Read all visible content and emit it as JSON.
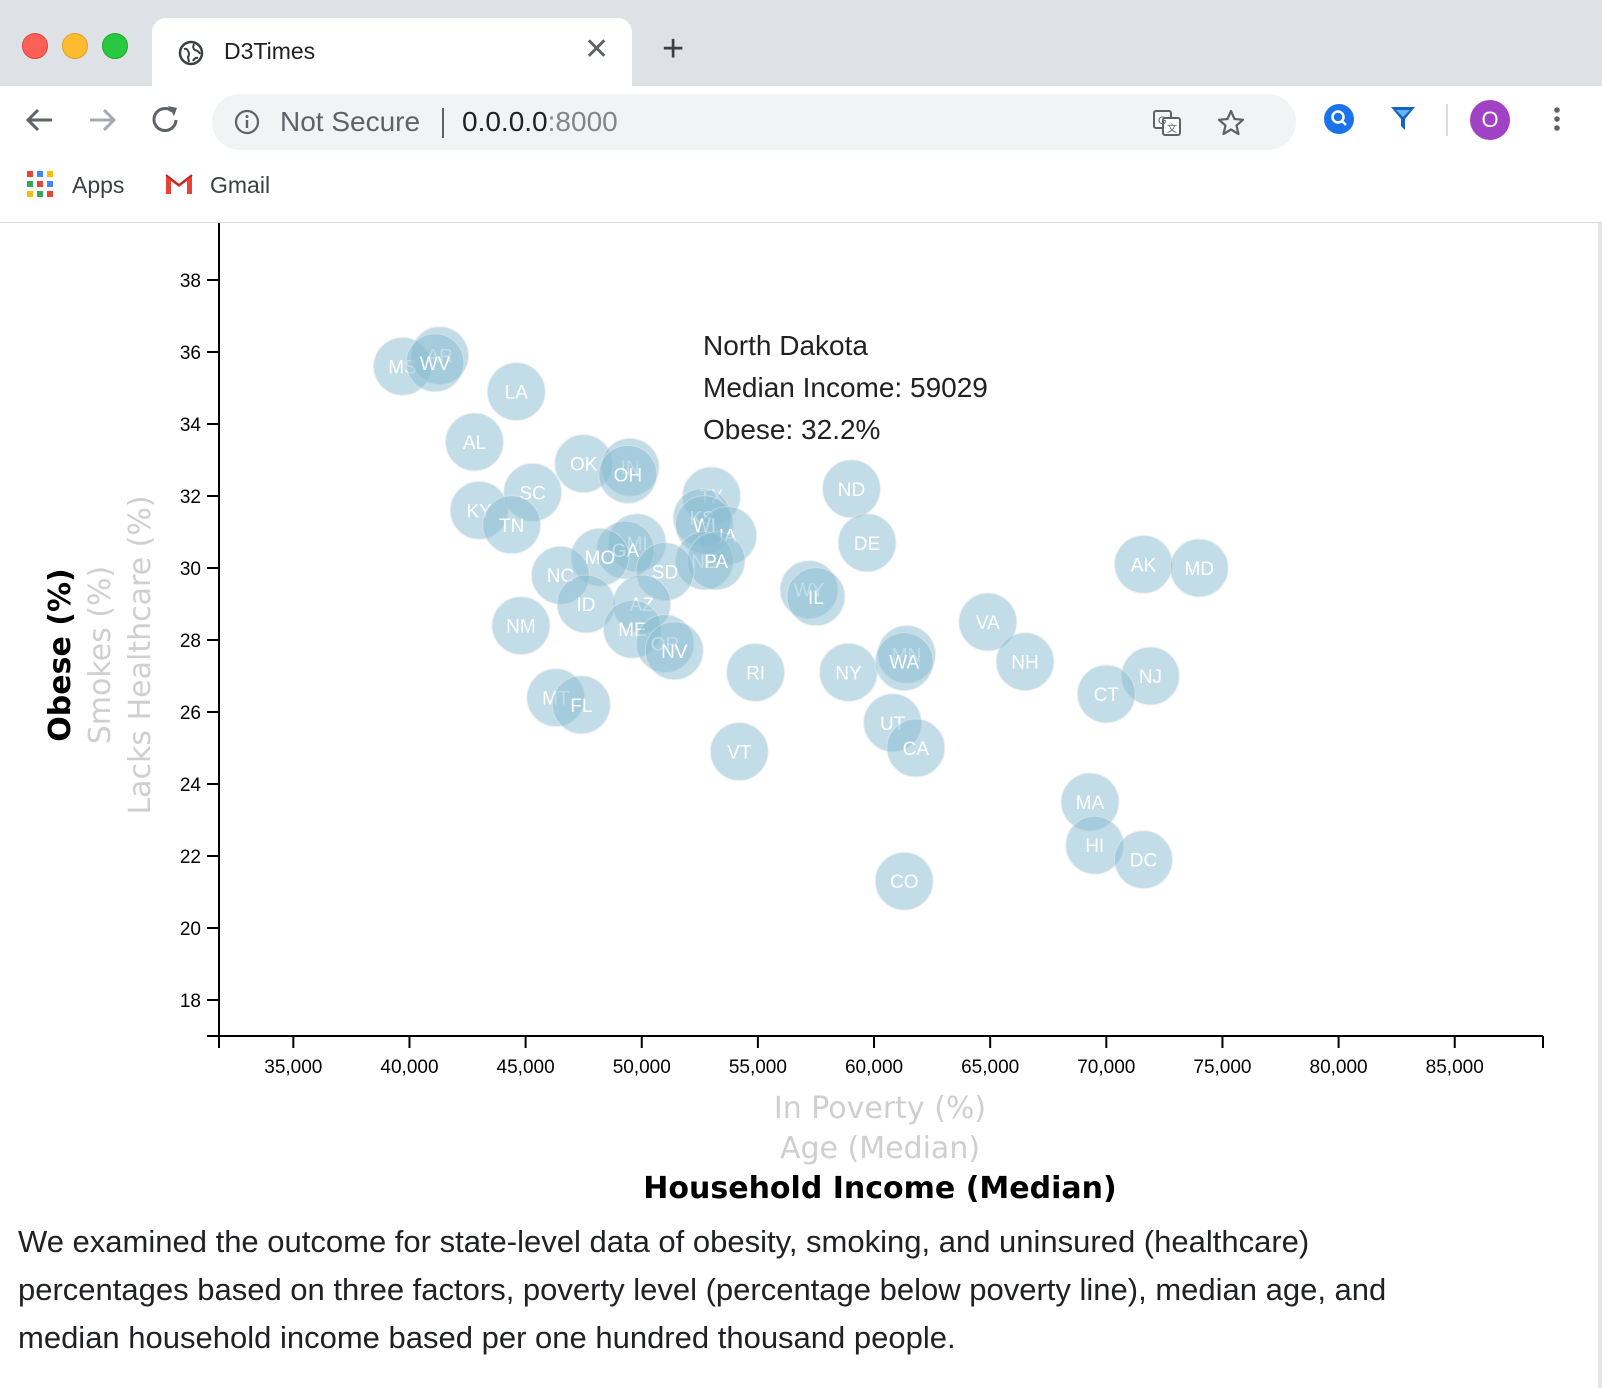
{
  "browser": {
    "tab_title": "D3Times",
    "security_label": "Not Secure",
    "url_host": "0.0.0.0",
    "url_port": ":8000",
    "profile_initial": "O",
    "bookmarks": [
      {
        "label": "Apps",
        "icon": "apps-grid-icon"
      },
      {
        "label": "Gmail",
        "icon": "gmail-icon"
      }
    ]
  },
  "tooltip": {
    "state": "North Dakota",
    "income_line": "Median Income: 59029",
    "obese_line": "Obese: 32.2%"
  },
  "chart_data": {
    "type": "scatter",
    "xlabel_options": [
      {
        "label": "In Poverty (%)",
        "active": false
      },
      {
        "label": "Age (Median)",
        "active": false
      },
      {
        "label": "Household Income (Median)",
        "active": true
      }
    ],
    "ylabel_options": [
      {
        "label": "Obese (%)",
        "active": true
      },
      {
        "label": "Smokes (%)",
        "active": false
      },
      {
        "label": "Lacks Healthcare (%)",
        "active": false
      }
    ],
    "x_ticks": [
      35000,
      40000,
      45000,
      50000,
      55000,
      60000,
      65000,
      70000,
      75000,
      80000,
      85000
    ],
    "x_tick_labels": [
      "35,000",
      "40,000",
      "45,000",
      "50,000",
      "55,000",
      "60,000",
      "65,000",
      "70,000",
      "75,000",
      "80,000",
      "85,000"
    ],
    "y_ticks": [
      18,
      20,
      22,
      24,
      26,
      28,
      30,
      32,
      34,
      36,
      38
    ],
    "xlim": [
      31800,
      88800
    ],
    "ylim": [
      17,
      40
    ],
    "marker_color": "#89bdd3",
    "points": [
      {
        "abbr": "MS",
        "x": 39700,
        "y": 35.6
      },
      {
        "abbr": "AR",
        "x": 41300,
        "y": 35.9
      },
      {
        "abbr": "WV",
        "x": 41100,
        "y": 35.7
      },
      {
        "abbr": "LA",
        "x": 44600,
        "y": 34.9
      },
      {
        "abbr": "AL",
        "x": 42800,
        "y": 33.5
      },
      {
        "abbr": "KY",
        "x": 43000,
        "y": 31.6
      },
      {
        "abbr": "SC",
        "x": 45300,
        "y": 32.1
      },
      {
        "abbr": "TN",
        "x": 44400,
        "y": 31.2
      },
      {
        "abbr": "OK",
        "x": 47500,
        "y": 32.9
      },
      {
        "abbr": "IN",
        "x": 49500,
        "y": 32.8
      },
      {
        "abbr": "OH",
        "x": 49400,
        "y": 32.6
      },
      {
        "abbr": "TX",
        "x": 53000,
        "y": 32.0
      },
      {
        "abbr": "KS",
        "x": 52600,
        "y": 31.4
      },
      {
        "abbr": "WI",
        "x": 52700,
        "y": 31.2
      },
      {
        "abbr": "IA",
        "x": 53700,
        "y": 30.9
      },
      {
        "abbr": "NE",
        "x": 52700,
        "y": 30.2
      },
      {
        "abbr": "PA",
        "x": 53200,
        "y": 30.2
      },
      {
        "abbr": "MI",
        "x": 49800,
        "y": 30.7
      },
      {
        "abbr": "GA",
        "x": 49300,
        "y": 30.5
      },
      {
        "abbr": "MO",
        "x": 48200,
        "y": 30.3
      },
      {
        "abbr": "SD",
        "x": 51000,
        "y": 29.9
      },
      {
        "abbr": "NC",
        "x": 46500,
        "y": 29.8
      },
      {
        "abbr": "ID",
        "x": 47600,
        "y": 29.0
      },
      {
        "abbr": "AZ",
        "x": 50000,
        "y": 29.0
      },
      {
        "abbr": "ME",
        "x": 49600,
        "y": 28.3
      },
      {
        "abbr": "OR",
        "x": 51000,
        "y": 27.9
      },
      {
        "abbr": "NV",
        "x": 51400,
        "y": 27.7
      },
      {
        "abbr": "NM",
        "x": 44800,
        "y": 28.4
      },
      {
        "abbr": "MT",
        "x": 46300,
        "y": 26.4
      },
      {
        "abbr": "FL",
        "x": 47400,
        "y": 26.2
      },
      {
        "abbr": "WY",
        "x": 57200,
        "y": 29.4
      },
      {
        "abbr": "IL",
        "x": 57500,
        "y": 29.2
      },
      {
        "abbr": "ND",
        "x": 59029,
        "y": 32.2
      },
      {
        "abbr": "DE",
        "x": 59700,
        "y": 30.7
      },
      {
        "abbr": "RI",
        "x": 54900,
        "y": 27.1
      },
      {
        "abbr": "VT",
        "x": 54200,
        "y": 24.9
      },
      {
        "abbr": "NY",
        "x": 58900,
        "y": 27.1
      },
      {
        "abbr": "MN",
        "x": 61400,
        "y": 27.6
      },
      {
        "abbr": "WA",
        "x": 61300,
        "y": 27.4
      },
      {
        "abbr": "UT",
        "x": 60800,
        "y": 25.7
      },
      {
        "abbr": "CA",
        "x": 61800,
        "y": 25.0
      },
      {
        "abbr": "CO",
        "x": 61300,
        "y": 21.3
      },
      {
        "abbr": "VA",
        "x": 64900,
        "y": 28.5
      },
      {
        "abbr": "NH",
        "x": 66500,
        "y": 27.4
      },
      {
        "abbr": "AK",
        "x": 71600,
        "y": 30.1
      },
      {
        "abbr": "MD",
        "x": 74000,
        "y": 30.0
      },
      {
        "abbr": "NJ",
        "x": 71900,
        "y": 27.0
      },
      {
        "abbr": "CT",
        "x": 70000,
        "y": 26.5
      },
      {
        "abbr": "MA",
        "x": 69300,
        "y": 23.5
      },
      {
        "abbr": "HI",
        "x": 69500,
        "y": 22.3
      },
      {
        "abbr": "DC",
        "x": 71600,
        "y": 21.9
      }
    ]
  },
  "description": "We examined the outcome for state-level data of obesity, smoking, and uninsured (healthcare) percentages based on three factors, poverty level (percentage below poverty line), median age, and median household income based per one hundred thousand people."
}
